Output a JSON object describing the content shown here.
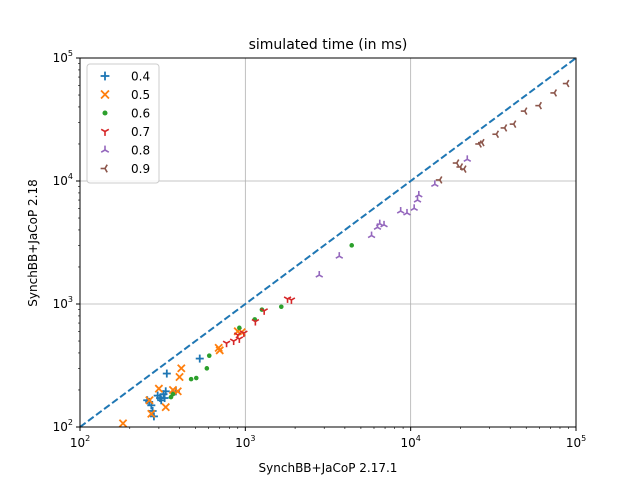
{
  "chart_data": {
    "type": "scatter",
    "title": "simulated time (in ms)",
    "xlabel": "SynchBB+JaCoP 2.17.1",
    "ylabel": "SynchBB+JaCoP 2.18",
    "xscale": "log",
    "yscale": "log",
    "xlim": [
      100,
      100000
    ],
    "ylim": [
      100,
      100000
    ],
    "grid": true,
    "legend_position": "top-left",
    "x_ticks": [
      {
        "value": 100,
        "base": "10",
        "exp": "2"
      },
      {
        "value": 1000,
        "base": "10",
        "exp": "3"
      },
      {
        "value": 10000,
        "base": "10",
        "exp": "4"
      },
      {
        "value": 100000,
        "base": "10",
        "exp": "5"
      }
    ],
    "y_ticks": [
      {
        "value": 100,
        "base": "10",
        "exp": "2"
      },
      {
        "value": 1000,
        "base": "10",
        "exp": "3"
      },
      {
        "value": 10000,
        "base": "10",
        "exp": "4"
      },
      {
        "value": 100000,
        "base": "10",
        "exp": "5"
      }
    ],
    "diagonal": {
      "style": "dashed",
      "color": "#1f77b4",
      "from": [
        100,
        100
      ],
      "to": [
        100000,
        100000
      ]
    },
    "series": [
      {
        "name": "0.4",
        "marker": "plus",
        "color": "#1f77b4",
        "points": [
          [
            255,
            165
          ],
          [
            262,
            160
          ],
          [
            270,
            150
          ],
          [
            275,
            135
          ],
          [
            280,
            122
          ],
          [
            295,
            180
          ],
          [
            305,
            172
          ],
          [
            310,
            165
          ],
          [
            320,
            185
          ],
          [
            325,
            172
          ],
          [
            330,
            195
          ],
          [
            335,
            272
          ],
          [
            380,
            195
          ],
          [
            530,
            360
          ]
        ]
      },
      {
        "name": "0.5",
        "marker": "x",
        "color": "#ff7f0e",
        "points": [
          [
            182,
            107
          ],
          [
            263,
            165
          ],
          [
            270,
            128
          ],
          [
            300,
            205
          ],
          [
            330,
            145
          ],
          [
            365,
            200
          ],
          [
            390,
            195
          ],
          [
            400,
            255
          ],
          [
            410,
            300
          ],
          [
            690,
            440
          ],
          [
            700,
            420
          ],
          [
            900,
            600
          ],
          [
            950,
            590
          ]
        ]
      },
      {
        "name": "0.6",
        "marker": "dot",
        "color": "#2ca02c",
        "points": [
          [
            355,
            175
          ],
          [
            365,
            185
          ],
          [
            470,
            245
          ],
          [
            505,
            250
          ],
          [
            585,
            300
          ],
          [
            605,
            380
          ],
          [
            920,
            640
          ],
          [
            1140,
            750
          ],
          [
            1260,
            900
          ],
          [
            1650,
            950
          ],
          [
            4400,
            3000
          ]
        ]
      },
      {
        "name": "0.7",
        "marker": "tri_down",
        "color": "#d62728",
        "points": [
          [
            770,
            480
          ],
          [
            850,
            500
          ],
          [
            900,
            560
          ],
          [
            920,
            520
          ],
          [
            980,
            580
          ],
          [
            1150,
            720
          ],
          [
            1300,
            880
          ],
          [
            1800,
            1100
          ],
          [
            1900,
            1080
          ]
        ]
      },
      {
        "name": "0.8",
        "marker": "tri_up",
        "color": "#9467bd",
        "points": [
          [
            2800,
            1720
          ],
          [
            3700,
            2450
          ],
          [
            5800,
            3600
          ],
          [
            6300,
            4200
          ],
          [
            6500,
            4500
          ],
          [
            6900,
            4400
          ],
          [
            8700,
            5700
          ],
          [
            9500,
            5500
          ],
          [
            10500,
            6000
          ],
          [
            11000,
            7000
          ],
          [
            11200,
            7700
          ],
          [
            14000,
            9400
          ],
          [
            22000,
            15000
          ]
        ]
      },
      {
        "name": "0.9",
        "marker": "tri_left",
        "color": "#8c564b",
        "points": [
          [
            15000,
            10200
          ],
          [
            19000,
            14000
          ],
          [
            20000,
            13000
          ],
          [
            21000,
            12500
          ],
          [
            26000,
            20000
          ],
          [
            27000,
            20500
          ],
          [
            33000,
            24000
          ],
          [
            37000,
            27000
          ],
          [
            42000,
            29000
          ],
          [
            49000,
            37000
          ],
          [
            60000,
            41000
          ],
          [
            74000,
            52000
          ],
          [
            88000,
            62000
          ]
        ]
      }
    ]
  }
}
